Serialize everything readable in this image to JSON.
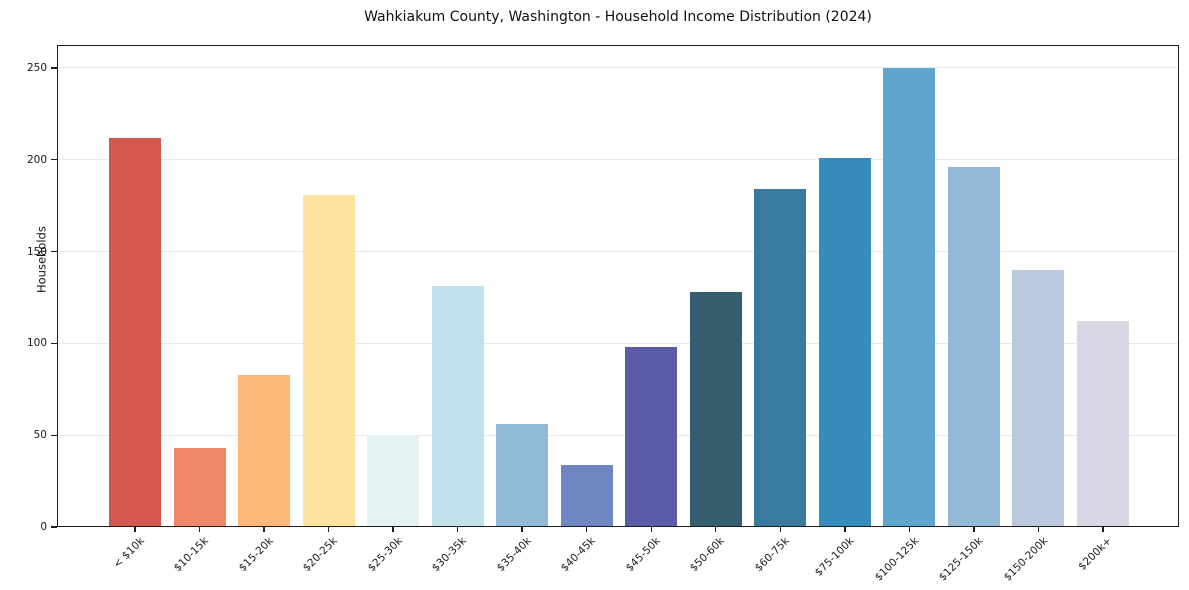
{
  "chart_data": {
    "type": "bar",
    "title": "Wahkiakum County, Washington - Household Income Distribution (2024)",
    "xlabel": "",
    "ylabel": "Households",
    "categories": [
      "< $10k",
      "$10-15k",
      "$15-20k",
      "$20-25k",
      "$25-30k",
      "$30-35k",
      "$35-40k",
      "$40-45k",
      "$45-50k",
      "$50-60k",
      "$60-75k",
      "$75-100k",
      "$100-125k",
      "$125-150k",
      "$150-200k",
      "$200k+"
    ],
    "values": [
      212,
      43,
      83,
      181,
      50,
      131,
      56,
      34,
      98,
      128,
      184,
      201,
      250,
      196,
      140,
      112
    ],
    "bar_colors": [
      "#d4574e",
      "#ef8768",
      "#fab87a",
      "#fde3a1",
      "#e6f1f2",
      "#c2e1ec",
      "#91bad9",
      "#6e87c2",
      "#5c5ba7",
      "#365e6e",
      "#397a9e",
      "#388cbd",
      "#5fa6cd",
      "#93b8d8",
      "#bac9df",
      "#d8d8e4"
    ],
    "yticks": [
      0,
      50,
      100,
      150,
      200,
      250
    ],
    "ylim": [
      0,
      262.5
    ],
    "grid": "horizontal",
    "gridline_color": "#e9e9e9",
    "frame_color": "#1c1c1c",
    "background": "#ffffff",
    "legend": "none"
  }
}
